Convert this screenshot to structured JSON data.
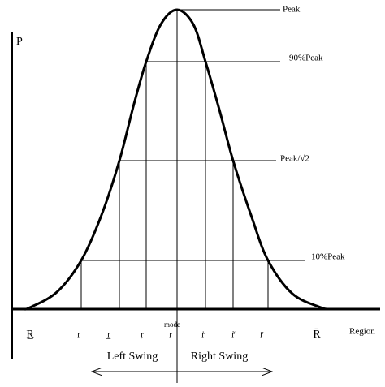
{
  "y_axis_label": "P",
  "levels": [
    "Peak",
    "90%Peak",
    "Peak/√2",
    "10%Peak"
  ],
  "mode_label": "mode",
  "x_labels": [
    "R̲",
    "r̲",
    "r̳",
    "ṛ",
    "r",
    "ṙ",
    "r̃",
    "r̄",
    "R̄"
  ],
  "x_axis_label": "Region",
  "swings": [
    "Left Swing",
    "Right Swing"
  ]
}
